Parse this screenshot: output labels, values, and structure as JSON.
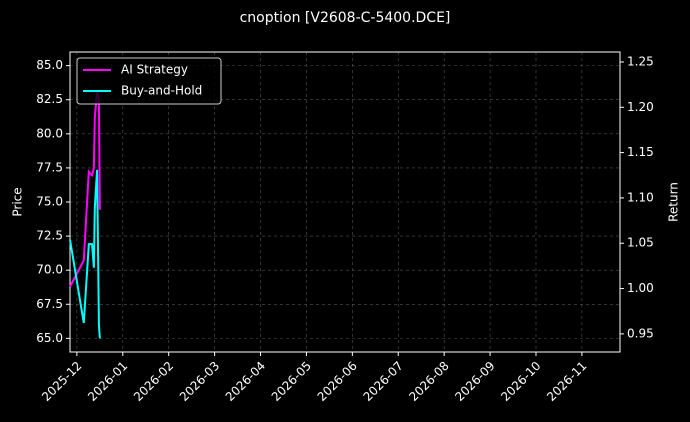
{
  "chart_data": {
    "type": "line",
    "title": "cnoption [V2608-C-5400.DCE]",
    "ylabel": "Price",
    "y2label": "Return",
    "x": [
      -0.15,
      0.15,
      0.26,
      0.33,
      0.37,
      0.39,
      0.44,
      0.48,
      0.5
    ],
    "series": [
      {
        "name": "AI Strategy",
        "color": "#ff00ff",
        "axis": "y2",
        "values": [
          1.002,
          1.031,
          1.129,
          1.125,
          1.133,
          1.188,
          1.219,
          1.208,
          1.087
        ]
      },
      {
        "name": "Buy-and-Hold",
        "color": "#00ffff",
        "axis": "y2",
        "values": [
          1.054,
          0.962,
          1.049,
          1.049,
          1.023,
          1.089,
          1.131,
          0.96,
          0.945
        ]
      }
    ],
    "xlim": [
      -0.15,
      11.83
    ],
    "xticks": [
      {
        "value": 0,
        "label": "2025-12"
      },
      {
        "value": 1,
        "label": "2026-01"
      },
      {
        "value": 2,
        "label": "2026-02"
      },
      {
        "value": 3,
        "label": "2026-03"
      },
      {
        "value": 4,
        "label": "2026-04"
      },
      {
        "value": 5,
        "label": "2026-05"
      },
      {
        "value": 6,
        "label": "2026-06"
      },
      {
        "value": 7,
        "label": "2026-07"
      },
      {
        "value": 8,
        "label": "2026-08"
      },
      {
        "value": 9,
        "label": "2026-09"
      },
      {
        "value": 10,
        "label": "2026-10"
      },
      {
        "value": 11,
        "label": "2026-11"
      }
    ],
    "ylim": [
      64,
      86
    ],
    "yticks": [
      {
        "value": 65,
        "label": "65.0"
      },
      {
        "value": 67.5,
        "label": "67.5"
      },
      {
        "value": 70,
        "label": "70.0"
      },
      {
        "value": 72.5,
        "label": "72.5"
      },
      {
        "value": 75,
        "label": "75.0"
      },
      {
        "value": 77.5,
        "label": "77.5"
      },
      {
        "value": 80,
        "label": "80.0"
      },
      {
        "value": 82.5,
        "label": "82.5"
      },
      {
        "value": 85,
        "label": "85.0"
      }
    ],
    "y2lim": [
      0.93,
      1.261
    ],
    "y2ticks": [
      0.95,
      {
        "value": 1,
        "label": "1.00"
      },
      1.05,
      {
        "value": 1.1,
        "label": "1.10"
      },
      1.15,
      {
        "value": 1.2,
        "label": "1.20"
      },
      1.25
    ],
    "grid": true,
    "legend": "upper left"
  }
}
